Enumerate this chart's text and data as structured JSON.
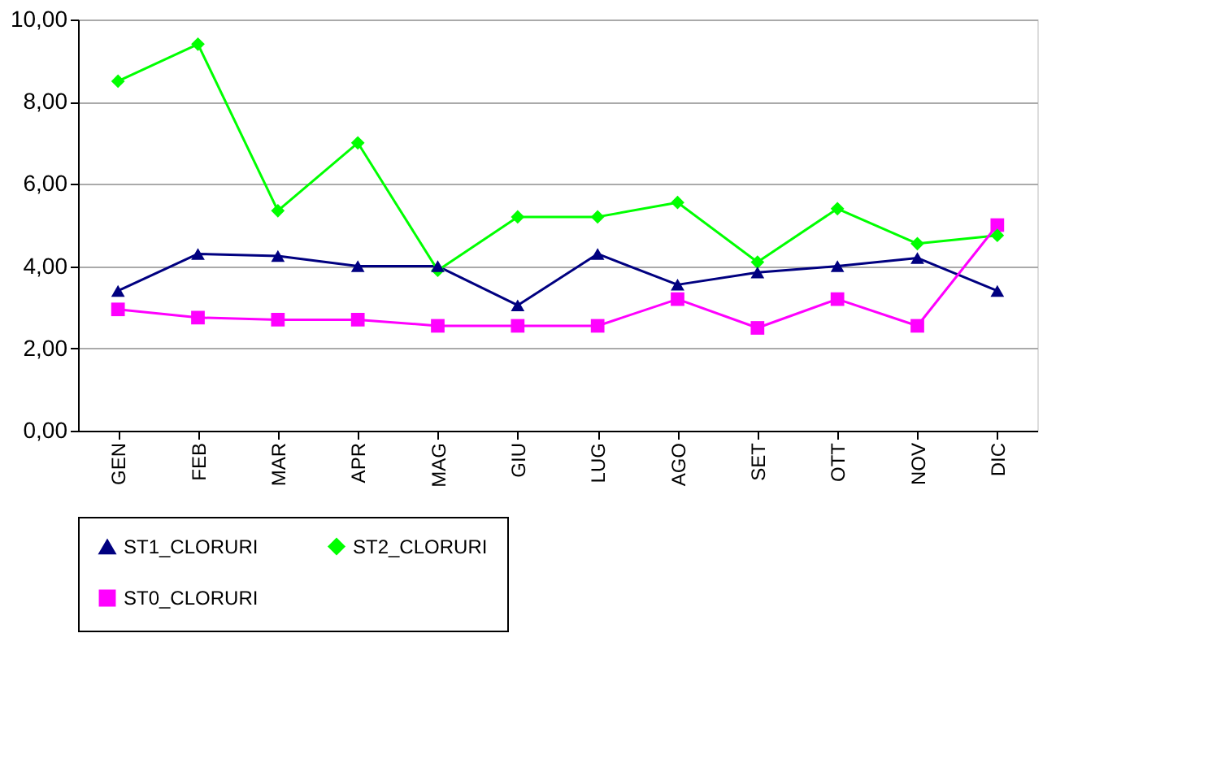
{
  "chart_data": {
    "type": "line",
    "categories": [
      "GEN",
      "FEB",
      "MAR",
      "APR",
      "MAG",
      "GIU",
      "LUG",
      "AGO",
      "SET",
      "OTT",
      "NOV",
      "DIC"
    ],
    "series": [
      {
        "name": "ST1_CLORURI",
        "color": "#000080",
        "marker": "triangle",
        "values": [
          3.4,
          4.3,
          4.25,
          4.0,
          4.0,
          3.05,
          4.3,
          3.55,
          3.85,
          4.0,
          4.2,
          3.4
        ]
      },
      {
        "name": "ST2_CLORURI",
        "color": "#00ff00",
        "marker": "diamond",
        "values": [
          8.5,
          9.4,
          5.35,
          7.0,
          3.9,
          5.2,
          5.2,
          5.55,
          4.1,
          5.4,
          4.55,
          4.75
        ]
      },
      {
        "name": "ST0_CLORURI",
        "color": "#ff00ff",
        "marker": "square",
        "values": [
          2.95,
          2.75,
          2.7,
          2.7,
          2.55,
          2.55,
          2.55,
          3.2,
          2.5,
          3.2,
          2.55,
          5.0
        ]
      }
    ],
    "ylim": [
      0,
      10
    ],
    "yticks": [
      {
        "value": 0,
        "label": "0,00"
      },
      {
        "value": 2,
        "label": "2,00"
      },
      {
        "value": 4,
        "label": "4,00"
      },
      {
        "value": 6,
        "label": "6,00"
      },
      {
        "value": 8,
        "label": "8,00"
      },
      {
        "value": 10,
        "label": "10,00"
      }
    ],
    "grid": "y",
    "legend": "bottom",
    "line_style": "solid"
  }
}
